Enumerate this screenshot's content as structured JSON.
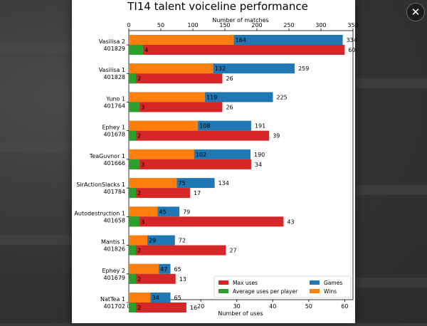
{
  "viewer": {
    "close_glyph": "✕",
    "close_icon": "close-icon"
  },
  "chart_data": {
    "type": "bar",
    "title": "TI14 talent voiceline performance",
    "categories": [
      [
        "Vasilisa 2",
        "401829"
      ],
      [
        "Vasilisa 1",
        "401828"
      ],
      [
        "Yuno 1",
        "401764"
      ],
      [
        "Ephey 1",
        "401678"
      ],
      [
        "TeaGuvnor 1",
        "401666"
      ],
      [
        "SirActionSlacks 1",
        "401784"
      ],
      [
        "Autodestruction 1",
        "401658"
      ],
      [
        "Mantis 1",
        "401826"
      ],
      [
        "Ephey 2",
        "401679"
      ],
      [
        "NatTea 1",
        "401702"
      ]
    ],
    "top_axis": {
      "label": "Number of matches",
      "range": [
        0,
        350
      ],
      "ticks": [
        0,
        50,
        100,
        150,
        200,
        250,
        300,
        350
      ]
    },
    "bottom_axis": {
      "label": "Number of uses",
      "range": [
        0,
        62.3
      ],
      "ticks": [
        0,
        10,
        20,
        30,
        40,
        50,
        60
      ]
    },
    "series": [
      {
        "name": "Games",
        "axis": "top",
        "color": "#1f77b4",
        "values": [
          334,
          259,
          225,
          191,
          190,
          134,
          79,
          72,
          65,
          65
        ]
      },
      {
        "name": "Wins",
        "axis": "top",
        "color": "#ff7f0e",
        "values": [
          164,
          132,
          119,
          108,
          102,
          75,
          45,
          29,
          47,
          34
        ]
      },
      {
        "name": "Max uses",
        "axis": "bottom",
        "color": "#d62728",
        "values": [
          60,
          26,
          26,
          39,
          34,
          17,
          43,
          27,
          13,
          16
        ]
      },
      {
        "name": "Average uses per player",
        "axis": "bottom",
        "color": "#2ca02c",
        "values": [
          4,
          2,
          3,
          2,
          3,
          2,
          3,
          2,
          2,
          2
        ]
      }
    ],
    "legend": {
      "placement": "lower-right",
      "entries": [
        "Max uses",
        "Games",
        "Average uses per player",
        "Wins"
      ]
    }
  }
}
